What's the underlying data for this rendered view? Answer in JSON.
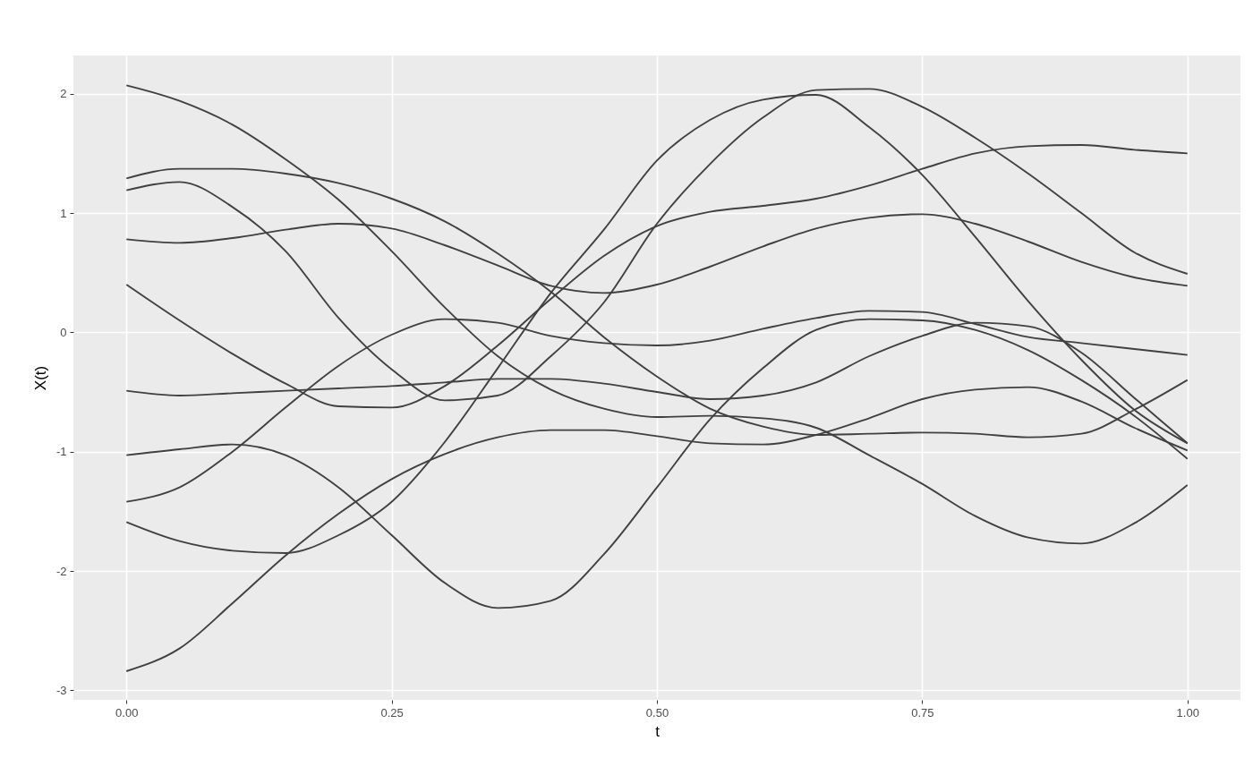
{
  "chart_data": {
    "type": "line",
    "xlabel": "t",
    "ylabel": "X(t)",
    "x": [
      0,
      0.05,
      0.1,
      0.15,
      0.2,
      0.25,
      0.3,
      0.35,
      0.4,
      0.45,
      0.5,
      0.55,
      0.6,
      0.65,
      0.7,
      0.75,
      0.8,
      0.85,
      0.9,
      0.95,
      1
    ],
    "xlim": [
      -0.05,
      1.05
    ],
    "xticks": [
      {
        "value": 0,
        "label": "0.00"
      },
      {
        "value": 0.25,
        "label": "0.25"
      },
      {
        "value": 0.5,
        "label": "0.50"
      },
      {
        "value": 0.75,
        "label": "0.75"
      },
      {
        "value": 1,
        "label": "1.00"
      }
    ],
    "ylim": [
      -3.08,
      2.32
    ],
    "yticks": [
      -3,
      -2,
      -1,
      0,
      1,
      2
    ],
    "grid": true,
    "line_style": "solid",
    "series": [
      {
        "color": "#404040",
        "values": [
          2.07,
          1.94,
          1.74,
          1.45,
          1.11,
          0.68,
          0.21,
          -0.2,
          -0.48,
          -0.64,
          -0.71,
          -0.7,
          -0.72,
          -0.8,
          -1.03,
          -1.27,
          -1.54,
          -1.72,
          -1.77,
          -1.6,
          -1.28
        ]
      },
      {
        "color": "#404040",
        "values": [
          1.29,
          1.37,
          1.37,
          1.33,
          1.25,
          1.12,
          0.93,
          0.66,
          0.34,
          -0.04,
          -0.37,
          -0.64,
          -0.79,
          -0.86,
          -0.85,
          -0.84,
          -0.85,
          -0.88,
          -0.85,
          -0.65,
          -0.4
        ]
      },
      {
        "color": "#404040",
        "values": [
          1.19,
          1.26,
          1.05,
          0.68,
          0.12,
          -0.31,
          -0.57,
          -0.53,
          -0.2,
          0.25,
          0.91,
          1.41,
          1.8,
          2.03,
          2.04,
          1.89,
          1.63,
          1.33,
          1.0,
          0.67,
          0.49
        ]
      },
      {
        "color": "#404040",
        "values": [
          0.78,
          0.75,
          0.79,
          0.86,
          0.91,
          0.87,
          0.73,
          0.56,
          0.39,
          0.33,
          0.4,
          0.55,
          0.72,
          0.87,
          0.96,
          0.99,
          0.91,
          0.76,
          0.59,
          0.46,
          0.39
        ]
      },
      {
        "color": "#404040",
        "values": [
          0.4,
          0.1,
          -0.18,
          -0.43,
          -0.62,
          -0.63,
          -0.45,
          -0.11,
          0.28,
          0.64,
          0.89,
          1.01,
          1.06,
          1.12,
          1.23,
          1.37,
          1.5,
          1.56,
          1.57,
          1.53,
          1.5
        ]
      },
      {
        "color": "#404040",
        "values": [
          -0.49,
          -0.53,
          -0.51,
          -0.49,
          -0.47,
          -0.45,
          -0.42,
          -0.39,
          -0.39,
          -0.43,
          -0.5,
          -0.56,
          -0.53,
          -0.42,
          -0.2,
          -0.03,
          0.08,
          0.05,
          -0.17,
          -0.55,
          -0.93
        ]
      },
      {
        "color": "#404040",
        "values": [
          -1.03,
          -0.98,
          -0.94,
          -1.03,
          -1.3,
          -1.7,
          -2.1,
          -2.31,
          -2.25,
          -1.86,
          -1.3,
          -0.73,
          -0.3,
          0.02,
          0.11,
          0.1,
          0.02,
          -0.15,
          -0.4,
          -0.7,
          -1.06
        ]
      },
      {
        "color": "#404040",
        "values": [
          -1.42,
          -1.3,
          -1.0,
          -0.63,
          -0.28,
          -0.02,
          0.11,
          0.08,
          -0.03,
          -0.09,
          -0.11,
          -0.07,
          0.03,
          0.12,
          0.18,
          0.17,
          0.07,
          -0.04,
          -0.09,
          -0.14,
          -0.19
        ]
      },
      {
        "color": "#404040",
        "values": [
          -1.59,
          -1.75,
          -1.83,
          -1.85,
          -1.7,
          -1.42,
          -0.92,
          -0.3,
          0.33,
          0.86,
          1.44,
          1.78,
          1.95,
          1.99,
          1.72,
          1.32,
          0.8,
          0.26,
          -0.23,
          -0.65,
          -0.93
        ]
      },
      {
        "color": "#404040",
        "values": [
          -2.84,
          -2.65,
          -2.27,
          -1.87,
          -1.52,
          -1.23,
          -1.02,
          -0.88,
          -0.82,
          -0.82,
          -0.87,
          -0.93,
          -0.94,
          -0.86,
          -0.72,
          -0.56,
          -0.48,
          -0.46,
          -0.58,
          -0.8,
          -0.99
        ]
      }
    ]
  }
}
